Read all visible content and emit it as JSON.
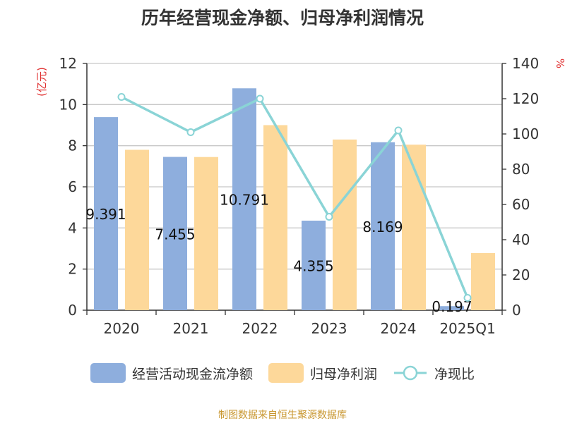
{
  "title": "历年经营现金净额、归母净利润情况",
  "source": "制图数据来自恒生聚源数据库",
  "chart_data": {
    "type": "bar",
    "title": "历年经营现金净额、归母净利润情况",
    "categories": [
      "2020",
      "2021",
      "2022",
      "2023",
      "2024",
      "2025Q1"
    ],
    "left_axis": {
      "label": "(亿元)",
      "ylim": [
        0,
        12
      ],
      "ticks": [
        "0",
        "2",
        "4",
        "6",
        "8",
        "10",
        "12"
      ]
    },
    "right_axis": {
      "label": "%",
      "ylim": [
        0,
        140
      ],
      "ticks": [
        "0",
        "20",
        "40",
        "60",
        "80",
        "100",
        "120",
        "140"
      ]
    },
    "grid": true,
    "legend_position": "bottom",
    "series": [
      {
        "name": "经营活动现金流净额",
        "kind": "bar",
        "axis": "left",
        "color": "#8eaedd",
        "values": [
          9.391,
          7.455,
          10.791,
          4.355,
          8.169,
          0.197
        ],
        "labels": [
          "9.391",
          "7.455",
          "10.791",
          "4.355",
          "8.169",
          "0.197"
        ]
      },
      {
        "name": "归母净利润",
        "kind": "bar",
        "axis": "left",
        "color": "#fdd89a",
        "values": [
          7.8,
          7.45,
          9.0,
          8.3,
          8.05,
          2.78
        ]
      },
      {
        "name": "净现比",
        "kind": "line",
        "axis": "right",
        "color": "#8ad4d6",
        "values": [
          121,
          101,
          120,
          53,
          102,
          7
        ]
      }
    ]
  }
}
